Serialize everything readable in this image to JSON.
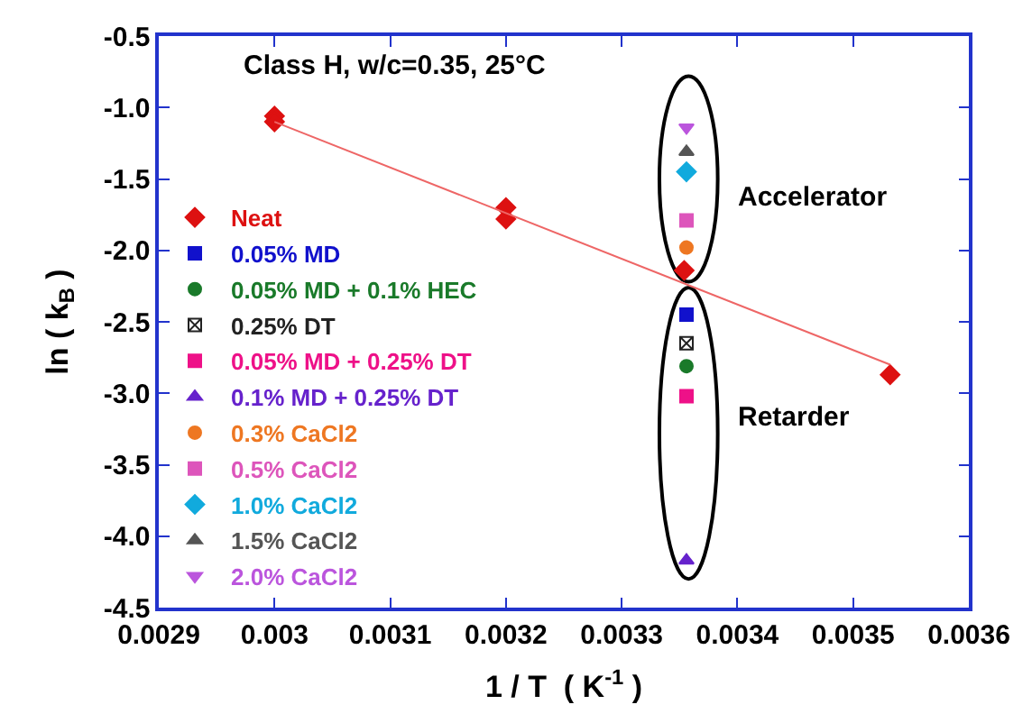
{
  "chart_data": {
    "type": "scatter",
    "title": "Class H, w/c=0.35, 25°C",
    "xlabel": "1 / T  ( K$^{-1}$ )",
    "ylabel": "ln ( k$_{B}$ )",
    "xlim": [
      0.0029,
      0.0036
    ],
    "xticks": [
      0.0029,
      0.003,
      0.0031,
      0.0032,
      0.0033,
      0.0034,
      0.0035,
      0.0036
    ],
    "ylim": [
      -4.5,
      -0.5
    ],
    "yticks": [
      -4.5,
      {
        "value": -4,
        "label": "-4.0"
      },
      -3.5,
      {
        "value": -3,
        "label": "-3.0"
      },
      -2.5,
      {
        "value": -2,
        "label": "-2.0"
      },
      -1.5,
      {
        "value": -1,
        "label": "-1.0"
      },
      -0.5
    ],
    "grid": false,
    "legend": "left",
    "annotations": [
      "Accelerator",
      "Retarder"
    ],
    "series": [
      {
        "name": "Neat",
        "color": "#dd1111",
        "marker": "diamond",
        "x": [
          0.003,
          0.003,
          0.0032,
          0.0032,
          0.003354,
          0.003532
        ],
        "values": [
          -1.06,
          -1.1,
          -1.7,
          -1.78,
          -2.14,
          -2.87
        ]
      },
      {
        "type": "line",
        "color": "#ee6666",
        "marker": "none",
        "x": [
          0.003,
          0.003532
        ],
        "values": [
          -1.1,
          -2.8
        ]
      },
      {
        "name": "0.05% MD",
        "color": "#1111cc",
        "marker": "square",
        "x": [
          0.003356
        ],
        "values": [
          -2.45
        ]
      },
      {
        "name": "0.05% MD + 0.1% HEC",
        "color": "#1a7a2a",
        "marker": "circle",
        "x": [
          0.003356
        ],
        "values": [
          -2.81
        ]
      },
      {
        "name": "0.25% DT",
        "color": "#222222",
        "marker": "cross",
        "x": [
          0.003356
        ],
        "values": [
          -2.65
        ]
      },
      {
        "name": "0.05% MD + 0.25% DT",
        "color": "#ee1188",
        "marker": "square",
        "x": [
          0.003356
        ],
        "values": [
          -3.02
        ]
      },
      {
        "name": "0.1% MD + 0.25% DT",
        "color": "#6622cc",
        "marker": "triangle",
        "x": [
          0.003356
        ],
        "values": [
          -4.17
        ]
      },
      {
        "name": "0.3% CaCl2",
        "color": "#ee7722",
        "marker": "circle",
        "x": [
          0.003356
        ],
        "values": [
          -1.98
        ]
      },
      {
        "name": "0.5% CaCl2",
        "color": "#dd55bb",
        "marker": "square",
        "x": [
          0.003356
        ],
        "values": [
          -1.79
        ]
      },
      {
        "name": "1.0% CaCl2",
        "color": "#11aadd",
        "marker": "diamond",
        "x": [
          0.003356
        ],
        "values": [
          -1.45
        ]
      },
      {
        "name": "1.5% CaCl2",
        "color": "#555555",
        "marker": "triangle",
        "x": [
          0.003356
        ],
        "values": [
          -1.31
        ]
      },
      {
        "name": "2.0% CaCl2",
        "color": "#bb55dd",
        "marker": "triangle-down",
        "x": [
          0.003356
        ],
        "values": [
          -1.14
        ]
      }
    ]
  }
}
